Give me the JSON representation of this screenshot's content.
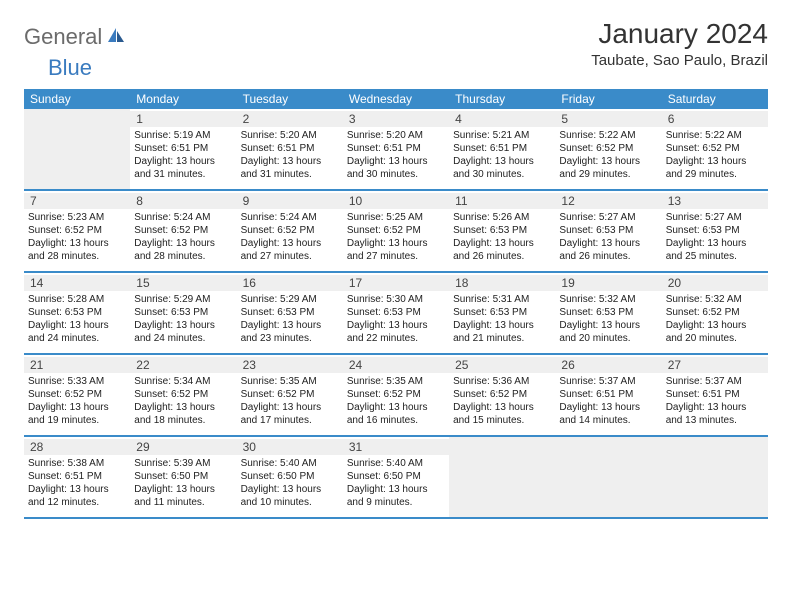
{
  "logo": {
    "text_gray": "General",
    "text_blue": "Blue"
  },
  "title": "January 2024",
  "location": "Taubate, Sao Paulo, Brazil",
  "colors": {
    "header_bg": "#3a8bc9",
    "header_text": "#ffffff",
    "blank_bg": "#efefef",
    "border": "#3a8bc9",
    "logo_gray": "#6b6b6b",
    "logo_blue": "#3a7bbf"
  },
  "day_headers": [
    "Sunday",
    "Monday",
    "Tuesday",
    "Wednesday",
    "Thursday",
    "Friday",
    "Saturday"
  ],
  "weeks": [
    [
      {
        "blank": true
      },
      {
        "n": "1",
        "sr": "Sunrise: 5:19 AM",
        "ss": "Sunset: 6:51 PM",
        "dl1": "Daylight: 13 hours",
        "dl2": "and 31 minutes."
      },
      {
        "n": "2",
        "sr": "Sunrise: 5:20 AM",
        "ss": "Sunset: 6:51 PM",
        "dl1": "Daylight: 13 hours",
        "dl2": "and 31 minutes."
      },
      {
        "n": "3",
        "sr": "Sunrise: 5:20 AM",
        "ss": "Sunset: 6:51 PM",
        "dl1": "Daylight: 13 hours",
        "dl2": "and 30 minutes."
      },
      {
        "n": "4",
        "sr": "Sunrise: 5:21 AM",
        "ss": "Sunset: 6:51 PM",
        "dl1": "Daylight: 13 hours",
        "dl2": "and 30 minutes."
      },
      {
        "n": "5",
        "sr": "Sunrise: 5:22 AM",
        "ss": "Sunset: 6:52 PM",
        "dl1": "Daylight: 13 hours",
        "dl2": "and 29 minutes."
      },
      {
        "n": "6",
        "sr": "Sunrise: 5:22 AM",
        "ss": "Sunset: 6:52 PM",
        "dl1": "Daylight: 13 hours",
        "dl2": "and 29 minutes."
      }
    ],
    [
      {
        "n": "7",
        "sr": "Sunrise: 5:23 AM",
        "ss": "Sunset: 6:52 PM",
        "dl1": "Daylight: 13 hours",
        "dl2": "and 28 minutes."
      },
      {
        "n": "8",
        "sr": "Sunrise: 5:24 AM",
        "ss": "Sunset: 6:52 PM",
        "dl1": "Daylight: 13 hours",
        "dl2": "and 28 minutes."
      },
      {
        "n": "9",
        "sr": "Sunrise: 5:24 AM",
        "ss": "Sunset: 6:52 PM",
        "dl1": "Daylight: 13 hours",
        "dl2": "and 27 minutes."
      },
      {
        "n": "10",
        "sr": "Sunrise: 5:25 AM",
        "ss": "Sunset: 6:52 PM",
        "dl1": "Daylight: 13 hours",
        "dl2": "and 27 minutes."
      },
      {
        "n": "11",
        "sr": "Sunrise: 5:26 AM",
        "ss": "Sunset: 6:53 PM",
        "dl1": "Daylight: 13 hours",
        "dl2": "and 26 minutes."
      },
      {
        "n": "12",
        "sr": "Sunrise: 5:27 AM",
        "ss": "Sunset: 6:53 PM",
        "dl1": "Daylight: 13 hours",
        "dl2": "and 26 minutes."
      },
      {
        "n": "13",
        "sr": "Sunrise: 5:27 AM",
        "ss": "Sunset: 6:53 PM",
        "dl1": "Daylight: 13 hours",
        "dl2": "and 25 minutes."
      }
    ],
    [
      {
        "n": "14",
        "sr": "Sunrise: 5:28 AM",
        "ss": "Sunset: 6:53 PM",
        "dl1": "Daylight: 13 hours",
        "dl2": "and 24 minutes."
      },
      {
        "n": "15",
        "sr": "Sunrise: 5:29 AM",
        "ss": "Sunset: 6:53 PM",
        "dl1": "Daylight: 13 hours",
        "dl2": "and 24 minutes."
      },
      {
        "n": "16",
        "sr": "Sunrise: 5:29 AM",
        "ss": "Sunset: 6:53 PM",
        "dl1": "Daylight: 13 hours",
        "dl2": "and 23 minutes."
      },
      {
        "n": "17",
        "sr": "Sunrise: 5:30 AM",
        "ss": "Sunset: 6:53 PM",
        "dl1": "Daylight: 13 hours",
        "dl2": "and 22 minutes."
      },
      {
        "n": "18",
        "sr": "Sunrise: 5:31 AM",
        "ss": "Sunset: 6:53 PM",
        "dl1": "Daylight: 13 hours",
        "dl2": "and 21 minutes."
      },
      {
        "n": "19",
        "sr": "Sunrise: 5:32 AM",
        "ss": "Sunset: 6:53 PM",
        "dl1": "Daylight: 13 hours",
        "dl2": "and 20 minutes."
      },
      {
        "n": "20",
        "sr": "Sunrise: 5:32 AM",
        "ss": "Sunset: 6:52 PM",
        "dl1": "Daylight: 13 hours",
        "dl2": "and 20 minutes."
      }
    ],
    [
      {
        "n": "21",
        "sr": "Sunrise: 5:33 AM",
        "ss": "Sunset: 6:52 PM",
        "dl1": "Daylight: 13 hours",
        "dl2": "and 19 minutes."
      },
      {
        "n": "22",
        "sr": "Sunrise: 5:34 AM",
        "ss": "Sunset: 6:52 PM",
        "dl1": "Daylight: 13 hours",
        "dl2": "and 18 minutes."
      },
      {
        "n": "23",
        "sr": "Sunrise: 5:35 AM",
        "ss": "Sunset: 6:52 PM",
        "dl1": "Daylight: 13 hours",
        "dl2": "and 17 minutes."
      },
      {
        "n": "24",
        "sr": "Sunrise: 5:35 AM",
        "ss": "Sunset: 6:52 PM",
        "dl1": "Daylight: 13 hours",
        "dl2": "and 16 minutes."
      },
      {
        "n": "25",
        "sr": "Sunrise: 5:36 AM",
        "ss": "Sunset: 6:52 PM",
        "dl1": "Daylight: 13 hours",
        "dl2": "and 15 minutes."
      },
      {
        "n": "26",
        "sr": "Sunrise: 5:37 AM",
        "ss": "Sunset: 6:51 PM",
        "dl1": "Daylight: 13 hours",
        "dl2": "and 14 minutes."
      },
      {
        "n": "27",
        "sr": "Sunrise: 5:37 AM",
        "ss": "Sunset: 6:51 PM",
        "dl1": "Daylight: 13 hours",
        "dl2": "and 13 minutes."
      }
    ],
    [
      {
        "n": "28",
        "sr": "Sunrise: 5:38 AM",
        "ss": "Sunset: 6:51 PM",
        "dl1": "Daylight: 13 hours",
        "dl2": "and 12 minutes."
      },
      {
        "n": "29",
        "sr": "Sunrise: 5:39 AM",
        "ss": "Sunset: 6:50 PM",
        "dl1": "Daylight: 13 hours",
        "dl2": "and 11 minutes."
      },
      {
        "n": "30",
        "sr": "Sunrise: 5:40 AM",
        "ss": "Sunset: 6:50 PM",
        "dl1": "Daylight: 13 hours",
        "dl2": "and 10 minutes."
      },
      {
        "n": "31",
        "sr": "Sunrise: 5:40 AM",
        "ss": "Sunset: 6:50 PM",
        "dl1": "Daylight: 13 hours",
        "dl2": "and 9 minutes."
      },
      {
        "blank": true
      },
      {
        "blank": true
      },
      {
        "blank": true
      }
    ]
  ]
}
